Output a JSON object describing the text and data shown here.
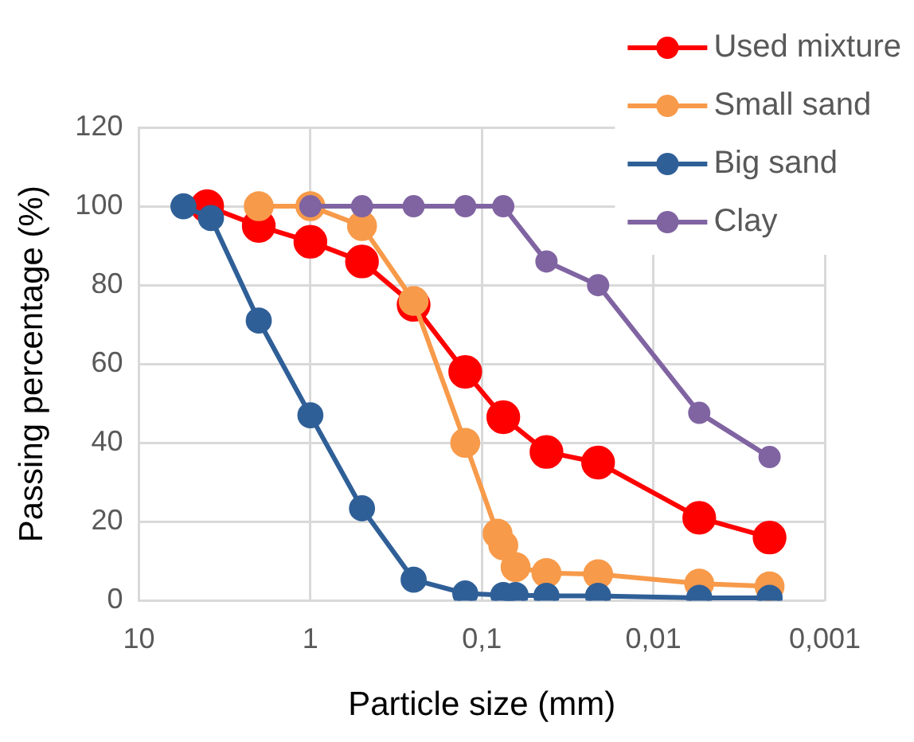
{
  "chart_data": {
    "type": "line",
    "xlabel": "Particle size (mm)",
    "ylabel": "Passing percentage (%)",
    "log": "x",
    "xlim": [
      10,
      0.001
    ],
    "xticks": [
      10,
      1,
      {
        "value": 0.1,
        "label": "0,1"
      },
      {
        "value": 0.01,
        "label": "0,01"
      },
      {
        "value": 0.001,
        "label": "0,001"
      }
    ],
    "ylim": [
      0,
      120
    ],
    "yticks": [
      0,
      20,
      40,
      60,
      80,
      100,
      120
    ],
    "grid": true,
    "legend": "top right",
    "marker": "circle",
    "line_style": "solid",
    "series": [
      {
        "name": "Used mixture",
        "color": "#ff0000",
        "x": [
          4,
          2,
          1,
          0.5,
          0.25,
          0.125,
          0.075,
          0.042,
          0.021,
          0.0054,
          0.0021
        ],
        "values": [
          100,
          95,
          91,
          86,
          75,
          58,
          46.5,
          37.7,
          35,
          21,
          16
        ]
      },
      {
        "name": "Small sand",
        "color": "#f79a4a",
        "x": [
          2,
          1,
          0.5,
          0.25,
          0.125,
          0.081,
          0.075,
          0.0636,
          0.042,
          0.021,
          0.0054,
          0.0021
        ],
        "values": [
          100,
          100,
          95,
          76,
          40,
          17,
          14,
          8.5,
          7,
          6.7,
          4.3,
          3.6
        ]
      },
      {
        "name": "Big sand",
        "color": "#2f5f97",
        "x": [
          5.5,
          3.8,
          2,
          1,
          0.5,
          0.25,
          0.125,
          0.075,
          0.0636,
          0.042,
          0.021,
          0.0054,
          0.0021
        ],
        "values": [
          100,
          97,
          71,
          47,
          23.4,
          5.3,
          1.8,
          1.4,
          1.4,
          1.2,
          1.2,
          0.7,
          0.7
        ]
      },
      {
        "name": "Clay",
        "color": "#8064a2",
        "x": [
          1,
          0.5,
          0.25,
          0.125,
          0.075,
          0.042,
          0.021,
          0.0054,
          0.0021
        ],
        "values": [
          100,
          100,
          100,
          100,
          100,
          86,
          80,
          47.6,
          36.4
        ]
      }
    ]
  }
}
